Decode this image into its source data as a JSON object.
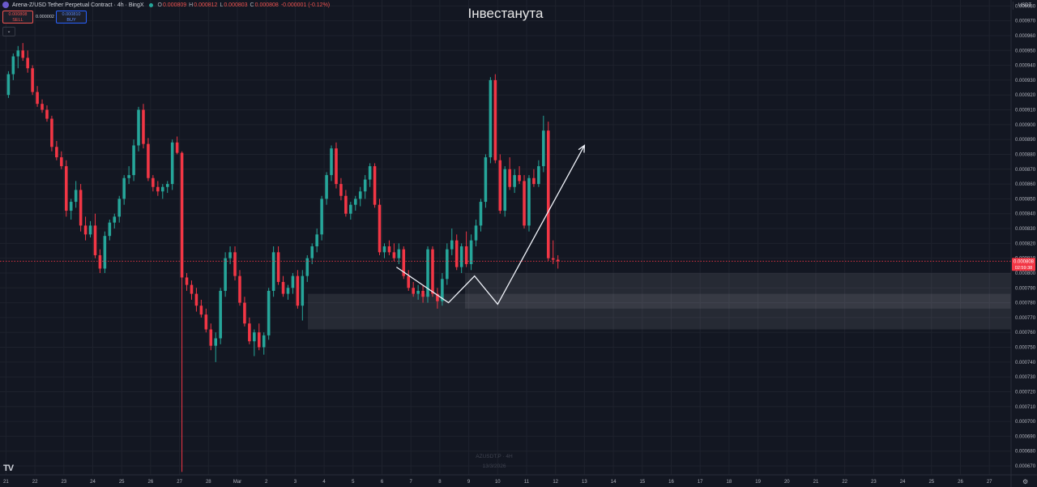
{
  "header": {
    "symbol": "Arena-Z/USD Tether Perpetual Contract · 4h · BingX",
    "open": "0.000809",
    "high": "0.000812",
    "low": "0.000803",
    "close": "0.000808",
    "change": "-0.000001 (-0.12%)",
    "o_label": "O",
    "h_label": "H",
    "l_label": "L",
    "c_label": "C"
  },
  "trade": {
    "sell_price": "0.000808",
    "sell_label": "SELL",
    "spread": "0.000002",
    "buy_price": "0.000810",
    "buy_label": "BUY"
  },
  "title": "Інвестанута",
  "watermark": {
    "symbol": "AZUSDT.P · 4H",
    "date": "13/3/2026"
  },
  "currency": "USDT",
  "colors": {
    "up": "#26a69a",
    "down": "#f23645",
    "background": "#131722",
    "grid": "#1e222d",
    "zone": "#2a2e39"
  },
  "chart_data": {
    "type": "candlestick",
    "timeframe": "4h",
    "ylim": [
      0.000664,
      0.000984
    ],
    "y_ticks": [
      "0.000980",
      "0.000970",
      "0.000960",
      "0.000950",
      "0.000940",
      "0.000930",
      "0.000920",
      "0.000910",
      "0.000900",
      "0.000890",
      "0.000880",
      "0.000870",
      "0.000860",
      "0.000850",
      "0.000840",
      "0.000830",
      "0.000820",
      "0.000810",
      "0.000800",
      "0.000790",
      "0.000780",
      "0.000770",
      "0.000760",
      "0.000750",
      "0.000740",
      "0.000730",
      "0.000720",
      "0.000710",
      "0.000700",
      "0.000690",
      "0.000680",
      "0.000670"
    ],
    "x_ticks": [
      "21",
      "22",
      "23",
      "24",
      "25",
      "26",
      "27",
      "28",
      "Mar",
      "2",
      "3",
      "4",
      "5",
      "6",
      "7",
      "8",
      "9",
      "10",
      "11",
      "12",
      "13",
      "14",
      "15",
      "16",
      "17",
      "18",
      "19",
      "20",
      "21",
      "22",
      "23",
      "24",
      "25",
      "26",
      "27"
    ],
    "last_price": {
      "value": "0.000808",
      "countdown": "02:59:38"
    },
    "candles": [
      [
        0.00092,
        0.000936,
        0.000918,
        0.000934
      ],
      [
        0.000934,
        0.000948,
        0.00093,
        0.000946
      ],
      [
        0.000946,
        0.000953,
        0.000938,
        0.00095
      ],
      [
        0.00095,
        0.000955,
        0.000943,
        0.000945
      ],
      [
        0.000945,
        0.00095,
        0.000935,
        0.000938
      ],
      [
        0.000938,
        0.00094,
        0.00092,
        0.000922
      ],
      [
        0.000922,
        0.000926,
        0.000912,
        0.000914
      ],
      [
        0.000914,
        0.000917,
        0.000908,
        0.00091
      ],
      [
        0.00091,
        0.000913,
        0.000902,
        0.000904
      ],
      [
        0.000904,
        0.000906,
        0.000882,
        0.000885
      ],
      [
        0.000885,
        0.000889,
        0.000876,
        0.000878
      ],
      [
        0.000878,
        0.000882,
        0.00087,
        0.000872
      ],
      [
        0.000872,
        0.000876,
        0.000838,
        0.000842
      ],
      [
        0.000842,
        0.00085,
        0.000836,
        0.000848
      ],
      [
        0.000848,
        0.000862,
        0.000844,
        0.000856
      ],
      [
        0.000856,
        0.00086,
        0.000828,
        0.000832
      ],
      [
        0.000832,
        0.000838,
        0.000822,
        0.000826
      ],
      [
        0.000826,
        0.000835,
        0.000824,
        0.000832
      ],
      [
        0.000832,
        0.00084,
        0.00081,
        0.000812
      ],
      [
        0.000812,
        0.000816,
        0.0008,
        0.000803
      ],
      [
        0.000803,
        0.000828,
        0.0008,
        0.000825
      ],
      [
        0.000825,
        0.000836,
        0.000822,
        0.000834
      ],
      [
        0.000834,
        0.00084,
        0.00083,
        0.000838
      ],
      [
        0.000838,
        0.000852,
        0.000834,
        0.00085
      ],
      [
        0.00085,
        0.000866,
        0.000846,
        0.000864
      ],
      [
        0.000864,
        0.000872,
        0.00086,
        0.000866
      ],
      [
        0.000866,
        0.00089,
        0.000862,
        0.000886
      ],
      [
        0.000886,
        0.000912,
        0.000882,
        0.00091
      ],
      [
        0.00091,
        0.000914,
        0.000884,
        0.000887
      ],
      [
        0.000887,
        0.000891,
        0.000862,
        0.000864
      ],
      [
        0.000864,
        0.000866,
        0.000855,
        0.000858
      ],
      [
        0.000858,
        0.000862,
        0.000852,
        0.000855
      ],
      [
        0.000855,
        0.00086,
        0.00085,
        0.000858
      ],
      [
        0.000858,
        0.000862,
        0.000854,
        0.00086
      ],
      [
        0.00086,
        0.00089,
        0.000856,
        0.000888
      ],
      [
        0.000888,
        0.000892,
        0.00088,
        0.000881
      ],
      [
        0.000881,
        0.000882,
        0.000666,
        0.000797
      ],
      [
        0.000797,
        0.0008,
        0.000788,
        0.000792
      ],
      [
        0.000792,
        0.000795,
        0.000782,
        0.000786
      ],
      [
        0.000786,
        0.00079,
        0.000774,
        0.000778
      ],
      [
        0.000778,
        0.000782,
        0.00077,
        0.000772
      ],
      [
        0.000772,
        0.000776,
        0.00076,
        0.000762
      ],
      [
        0.000762,
        0.000766,
        0.000748,
        0.000751
      ],
      [
        0.000751,
        0.00076,
        0.00074,
        0.000756
      ],
      [
        0.000756,
        0.00079,
        0.000752,
        0.000788
      ],
      [
        0.000788,
        0.000814,
        0.000784,
        0.00081
      ],
      [
        0.00081,
        0.000818,
        0.000806,
        0.000814
      ],
      [
        0.000814,
        0.000818,
        0.000795,
        0.000798
      ],
      [
        0.000798,
        0.000802,
        0.000778,
        0.00078
      ],
      [
        0.00078,
        0.000784,
        0.000764,
        0.000766
      ],
      [
        0.000766,
        0.00077,
        0.000752,
        0.000754
      ],
      [
        0.000754,
        0.000762,
        0.000744,
        0.00076
      ],
      [
        0.00076,
        0.000766,
        0.000748,
        0.00075
      ],
      [
        0.00075,
        0.00076,
        0.000745,
        0.000758
      ],
      [
        0.000758,
        0.00079,
        0.000755,
        0.000788
      ],
      [
        0.000788,
        0.000818,
        0.000784,
        0.000814
      ],
      [
        0.000814,
        0.000818,
        0.000792,
        0.000794
      ],
      [
        0.000794,
        0.000798,
        0.000784,
        0.000786
      ],
      [
        0.000786,
        0.000792,
        0.000782,
        0.00079
      ],
      [
        0.00079,
        0.0008,
        0.000786,
        0.000798
      ],
      [
        0.000798,
        0.000802,
        0.000776,
        0.000778
      ],
      [
        0.000778,
        0.000802,
        0.000768,
        0.000798
      ],
      [
        0.000798,
        0.000812,
        0.000794,
        0.00081
      ],
      [
        0.00081,
        0.00082,
        0.000806,
        0.000818
      ],
      [
        0.000818,
        0.00083,
        0.000814,
        0.000826
      ],
      [
        0.000826,
        0.000852,
        0.000822,
        0.00085
      ],
      [
        0.00085,
        0.000868,
        0.000846,
        0.000866
      ],
      [
        0.000866,
        0.000886,
        0.000862,
        0.000884
      ],
      [
        0.000884,
        0.000888,
        0.000857,
        0.00086
      ],
      [
        0.00086,
        0.000864,
        0.000849,
        0.000852
      ],
      [
        0.000852,
        0.000856,
        0.000838,
        0.00084
      ],
      [
        0.00084,
        0.000848,
        0.000836,
        0.000846
      ],
      [
        0.000846,
        0.000852,
        0.000842,
        0.00085
      ],
      [
        0.00085,
        0.000858,
        0.000845,
        0.000855
      ],
      [
        0.000855,
        0.000866,
        0.00085,
        0.000863
      ],
      [
        0.000863,
        0.000874,
        0.000858,
        0.000872
      ],
      [
        0.000872,
        0.000874,
        0.000844,
        0.000846
      ],
      [
        0.000846,
        0.00085,
        0.000812,
        0.000814
      ],
      [
        0.000814,
        0.00082,
        0.00081,
        0.000818
      ],
      [
        0.000818,
        0.000822,
        0.000812,
        0.000814
      ],
      [
        0.000814,
        0.00082,
        0.000808,
        0.00081
      ],
      [
        0.00081,
        0.00082,
        0.000806,
        0.000816
      ],
      [
        0.000816,
        0.000818,
        0.000796,
        0.000798
      ],
      [
        0.000798,
        0.000802,
        0.000788,
        0.00079
      ],
      [
        0.00079,
        0.000794,
        0.000784,
        0.000786
      ],
      [
        0.000786,
        0.000792,
        0.000782,
        0.000788
      ],
      [
        0.000788,
        0.000792,
        0.00078,
        0.000784
      ],
      [
        0.000784,
        0.000818,
        0.00078,
        0.000816
      ],
      [
        0.000816,
        0.000818,
        0.000784,
        0.000786
      ],
      [
        0.000786,
        0.00079,
        0.000776,
        0.000781
      ],
      [
        0.000781,
        0.0008,
        0.000778,
        0.000796
      ],
      [
        0.000796,
        0.00082,
        0.000792,
        0.000816
      ],
      [
        0.000816,
        0.00083,
        0.000812,
        0.000822
      ],
      [
        0.000822,
        0.000826,
        0.000802,
        0.000804
      ],
      [
        0.000804,
        0.00082,
        0.0008,
        0.000818
      ],
      [
        0.000818,
        0.000828,
        0.000804,
        0.000806
      ],
      [
        0.000806,
        0.000826,
        0.000802,
        0.000822
      ],
      [
        0.000822,
        0.000836,
        0.000818,
        0.000832
      ],
      [
        0.000832,
        0.00085,
        0.000828,
        0.000848
      ],
      [
        0.000848,
        0.00088,
        0.000844,
        0.000878
      ],
      [
        0.000878,
        0.000932,
        0.000874,
        0.00093
      ],
      [
        0.00093,
        0.000934,
        0.000874,
        0.000876
      ],
      [
        0.000876,
        0.00088,
        0.00084,
        0.000842
      ],
      [
        0.000842,
        0.000872,
        0.000838,
        0.00087
      ],
      [
        0.00087,
        0.000878,
        0.000856,
        0.000858
      ],
      [
        0.000858,
        0.00087,
        0.000854,
        0.000866
      ],
      [
        0.000866,
        0.000872,
        0.00086,
        0.000862
      ],
      [
        0.000862,
        0.000866,
        0.00083,
        0.000832
      ],
      [
        0.000832,
        0.000866,
        0.000828,
        0.000864
      ],
      [
        0.000864,
        0.00087,
        0.000858,
        0.00086
      ],
      [
        0.00086,
        0.000876,
        0.000858,
        0.000872
      ],
      [
        0.000872,
        0.000906,
        0.000868,
        0.000896
      ],
      [
        0.000896,
        0.000902,
        0.000808,
        0.00081
      ],
      [
        0.00081,
        0.000822,
        0.000806,
        0.000809
      ],
      [
        0.000809,
        0.000812,
        0.000803,
        0.000808
      ]
    ],
    "support_zones": [
      {
        "top": 0.0008,
        "bottom": 0.000776
      },
      {
        "top": 0.000786,
        "bottom": 0.000762
      }
    ],
    "projection_path": [
      {
        "date": "13.5",
        "price": 0.000804
      },
      {
        "date": "15.3",
        "price": 0.00078
      },
      {
        "date": "16.2",
        "price": 0.000798
      },
      {
        "date": "17.0",
        "price": 0.000779
      },
      {
        "date": "20.0",
        "price": 0.000886
      }
    ]
  }
}
